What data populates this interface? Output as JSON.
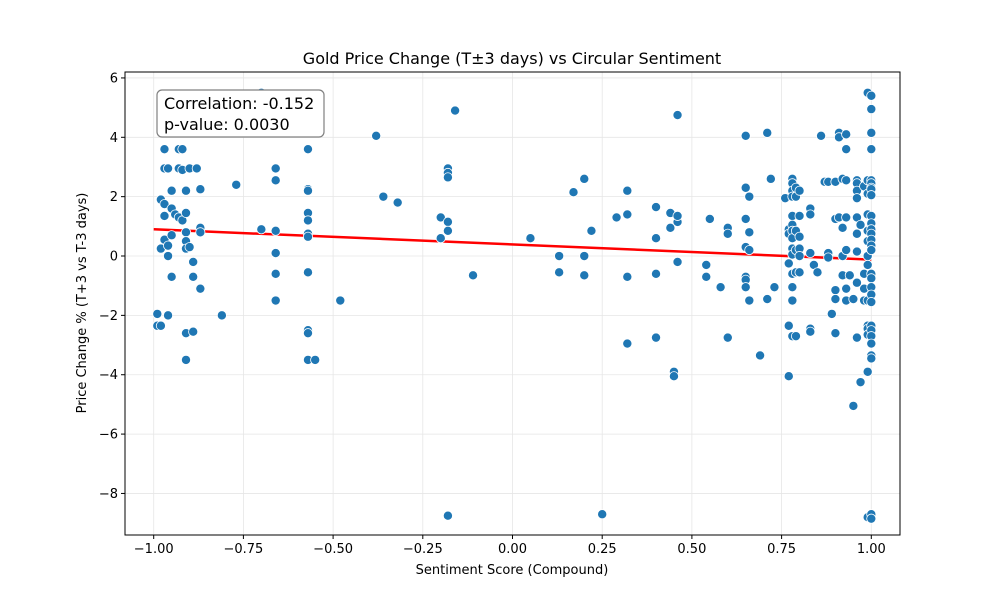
{
  "chart_data": {
    "type": "scatter",
    "title": "Gold Price Change (T±3 days) vs Circular Sentiment",
    "xlabel": "Sentiment Score (Compound)",
    "ylabel": "Price Change % (T+3 vs T-3 days)",
    "xlim": [
      -1.08,
      1.08
    ],
    "ylim": [
      -9.4,
      6.2
    ],
    "xticks": [
      -1.0,
      -0.75,
      -0.5,
      -0.25,
      0.0,
      0.25,
      0.5,
      0.75,
      1.0
    ],
    "xtick_labels": [
      "−1.00",
      "−0.75",
      "−0.50",
      "−0.25",
      "0.00",
      "0.25",
      "0.50",
      "0.75",
      "1.00"
    ],
    "yticks": [
      -8,
      -6,
      -4,
      -2,
      0,
      2,
      4,
      6
    ],
    "ytick_labels": [
      "−8",
      "−6",
      "−4",
      "−2",
      "0",
      "2",
      "4",
      "6"
    ],
    "grid": true,
    "annotation": {
      "line1": "Correlation: -0.152",
      "line2": "p-value: 0.0030"
    },
    "trend_line": {
      "x": [
        -1.0,
        1.0
      ],
      "y": [
        0.9,
        -0.12
      ],
      "color": "#ff0000"
    },
    "colors": {
      "point": "#1f77b4",
      "point_edge": "#ffffff",
      "grid": "#e6e6e6"
    },
    "points": [
      [
        -0.99,
        -2.35
      ],
      [
        -0.99,
        -1.95
      ],
      [
        -0.98,
        -2.35
      ],
      [
        -0.98,
        1.9
      ],
      [
        -0.98,
        0.25
      ],
      [
        -0.97,
        3.6
      ],
      [
        -0.97,
        2.95
      ],
      [
        -0.97,
        1.75
      ],
      [
        -0.97,
        1.35
      ],
      [
        -0.97,
        0.55
      ],
      [
        -0.96,
        2.95
      ],
      [
        -0.96,
        -2.0
      ],
      [
        -0.96,
        0.0
      ],
      [
        -0.96,
        0.35
      ],
      [
        -0.95,
        2.2
      ],
      [
        -0.95,
        1.6
      ],
      [
        -0.95,
        -0.7
      ],
      [
        -0.95,
        0.7
      ],
      [
        -0.94,
        1.4
      ],
      [
        -0.93,
        3.6
      ],
      [
        -0.93,
        2.95
      ],
      [
        -0.93,
        1.3
      ],
      [
        -0.92,
        3.6
      ],
      [
        -0.92,
        2.9
      ],
      [
        -0.92,
        1.2
      ],
      [
        -0.91,
        2.2
      ],
      [
        -0.91,
        1.45
      ],
      [
        -0.91,
        0.8
      ],
      [
        -0.91,
        0.5
      ],
      [
        -0.91,
        0.25
      ],
      [
        -0.91,
        -2.6
      ],
      [
        -0.91,
        -3.5
      ],
      [
        -0.9,
        2.95
      ],
      [
        -0.9,
        0.3
      ],
      [
        -0.89,
        -0.2
      ],
      [
        -0.89,
        -0.7
      ],
      [
        -0.89,
        -2.55
      ],
      [
        -0.88,
        2.95
      ],
      [
        -0.87,
        2.25
      ],
      [
        -0.87,
        0.95
      ],
      [
        -0.87,
        0.8
      ],
      [
        -0.87,
        -1.1
      ],
      [
        -0.81,
        -2.0
      ],
      [
        -0.77,
        2.4
      ],
      [
        -0.7,
        5.5
      ],
      [
        -0.7,
        0.9
      ],
      [
        -0.66,
        4.25
      ],
      [
        -0.66,
        2.95
      ],
      [
        -0.66,
        2.55
      ],
      [
        -0.66,
        0.85
      ],
      [
        -0.66,
        0.1
      ],
      [
        -0.66,
        -0.6
      ],
      [
        -0.66,
        -1.5
      ],
      [
        -0.57,
        3.6
      ],
      [
        -0.57,
        2.25
      ],
      [
        -0.57,
        2.2
      ],
      [
        -0.57,
        1.45
      ],
      [
        -0.57,
        1.2
      ],
      [
        -0.57,
        0.75
      ],
      [
        -0.57,
        0.65
      ],
      [
        -0.57,
        -0.55
      ],
      [
        -0.57,
        -2.5
      ],
      [
        -0.57,
        -2.6
      ],
      [
        -0.57,
        -3.5
      ],
      [
        -0.55,
        -3.5
      ],
      [
        -0.48,
        -1.5
      ],
      [
        -0.38,
        4.05
      ],
      [
        -0.36,
        2.0
      ],
      [
        -0.32,
        1.8
      ],
      [
        -0.2,
        1.3
      ],
      [
        -0.2,
        0.6
      ],
      [
        -0.18,
        2.95
      ],
      [
        -0.18,
        2.8
      ],
      [
        -0.18,
        2.65
      ],
      [
        -0.18,
        1.15
      ],
      [
        -0.18,
        0.85
      ],
      [
        -0.18,
        -8.75
      ],
      [
        -0.16,
        4.9
      ],
      [
        -0.11,
        -0.65
      ],
      [
        0.05,
        0.6
      ],
      [
        0.13,
        0.0
      ],
      [
        0.13,
        -0.55
      ],
      [
        0.17,
        2.15
      ],
      [
        0.2,
        2.6
      ],
      [
        0.2,
        0.0
      ],
      [
        0.2,
        -0.65
      ],
      [
        0.22,
        0.85
      ],
      [
        0.25,
        -8.7
      ],
      [
        0.29,
        1.3
      ],
      [
        0.32,
        2.2
      ],
      [
        0.32,
        1.4
      ],
      [
        0.32,
        -0.7
      ],
      [
        0.32,
        -2.95
      ],
      [
        0.4,
        1.65
      ],
      [
        0.4,
        0.6
      ],
      [
        0.4,
        -0.6
      ],
      [
        0.4,
        -2.75
      ],
      [
        0.44,
        1.45
      ],
      [
        0.44,
        0.95
      ],
      [
        0.45,
        -3.9
      ],
      [
        0.45,
        -4.05
      ],
      [
        0.46,
        4.75
      ],
      [
        0.46,
        1.15
      ],
      [
        0.46,
        1.35
      ],
      [
        0.46,
        -0.2
      ],
      [
        0.54,
        -0.3
      ],
      [
        0.54,
        -0.7
      ],
      [
        0.55,
        1.25
      ],
      [
        0.58,
        -1.05
      ],
      [
        0.6,
        0.95
      ],
      [
        0.6,
        0.75
      ],
      [
        0.6,
        -2.75
      ],
      [
        0.65,
        4.05
      ],
      [
        0.65,
        2.3
      ],
      [
        0.65,
        1.25
      ],
      [
        0.65,
        0.3
      ],
      [
        0.65,
        -0.7
      ],
      [
        0.65,
        -0.8
      ],
      [
        0.65,
        -1.05
      ],
      [
        0.66,
        2.0
      ],
      [
        0.66,
        0.8
      ],
      [
        0.66,
        0.2
      ],
      [
        0.66,
        -1.5
      ],
      [
        0.69,
        -3.35
      ],
      [
        0.71,
        4.15
      ],
      [
        0.72,
        2.6
      ],
      [
        0.71,
        -1.45
      ],
      [
        0.73,
        -1.05
      ],
      [
        0.76,
        1.95
      ],
      [
        0.77,
        0.9
      ],
      [
        0.77,
        0.75
      ],
      [
        0.77,
        -0.25
      ],
      [
        0.77,
        -2.35
      ],
      [
        0.77,
        -4.05
      ],
      [
        0.78,
        2.6
      ],
      [
        0.78,
        2.45
      ],
      [
        0.78,
        2.2
      ],
      [
        0.78,
        2.0
      ],
      [
        0.78,
        1.35
      ],
      [
        0.78,
        1.05
      ],
      [
        0.78,
        0.85
      ],
      [
        0.78,
        0.6
      ],
      [
        0.78,
        0.25
      ],
      [
        0.78,
        0.05
      ],
      [
        0.78,
        -0.6
      ],
      [
        0.78,
        -1.05
      ],
      [
        0.78,
        -1.5
      ],
      [
        0.78,
        -2.7
      ],
      [
        0.79,
        2.3
      ],
      [
        0.79,
        2.0
      ],
      [
        0.79,
        0.85
      ],
      [
        0.79,
        0.2
      ],
      [
        0.79,
        -0.55
      ],
      [
        0.79,
        -2.7
      ],
      [
        0.8,
        2.2
      ],
      [
        0.8,
        1.35
      ],
      [
        0.8,
        0.65
      ],
      [
        0.8,
        0.25
      ],
      [
        0.8,
        0.0
      ],
      [
        0.8,
        -0.55
      ],
      [
        0.83,
        1.6
      ],
      [
        0.83,
        1.4
      ],
      [
        0.83,
        0.1
      ],
      [
        0.83,
        -2.45
      ],
      [
        0.83,
        -2.55
      ],
      [
        0.84,
        -0.3
      ],
      [
        0.85,
        -0.55
      ],
      [
        0.86,
        4.05
      ],
      [
        0.87,
        2.5
      ],
      [
        0.88,
        2.5
      ],
      [
        0.88,
        0.1
      ],
      [
        0.88,
        -0.05
      ],
      [
        0.89,
        -1.95
      ],
      [
        0.9,
        2.5
      ],
      [
        0.9,
        1.25
      ],
      [
        0.9,
        -1.15
      ],
      [
        0.9,
        -1.45
      ],
      [
        0.9,
        -2.6
      ],
      [
        0.91,
        4.15
      ],
      [
        0.91,
        4.0
      ],
      [
        0.91,
        1.3
      ],
      [
        0.92,
        2.6
      ],
      [
        0.92,
        0.95
      ],
      [
        0.92,
        0.0
      ],
      [
        0.92,
        -0.65
      ],
      [
        0.93,
        4.1
      ],
      [
        0.93,
        3.6
      ],
      [
        0.93,
        2.55
      ],
      [
        0.93,
        1.3
      ],
      [
        0.93,
        0.2
      ],
      [
        0.93,
        -1.1
      ],
      [
        0.93,
        -1.5
      ],
      [
        0.94,
        -0.65
      ],
      [
        0.95,
        -1.45
      ],
      [
        0.95,
        -5.05
      ],
      [
        0.96,
        2.55
      ],
      [
        0.96,
        2.45
      ],
      [
        0.96,
        2.2
      ],
      [
        0.96,
        1.95
      ],
      [
        0.96,
        1.3
      ],
      [
        0.96,
        0.75
      ],
      [
        0.96,
        0.15
      ],
      [
        0.96,
        -0.9
      ],
      [
        0.96,
        -2.75
      ],
      [
        0.97,
        -4.25
      ],
      [
        0.97,
        1.05
      ],
      [
        0.98,
        2.35
      ],
      [
        0.98,
        -1.5
      ],
      [
        0.98,
        -1.1
      ],
      [
        0.98,
        -0.6
      ],
      [
        0.99,
        5.5
      ],
      [
        0.99,
        2.55
      ],
      [
        0.99,
        2.1
      ],
      [
        0.99,
        1.4
      ],
      [
        0.99,
        0.85
      ],
      [
        0.99,
        0.5
      ],
      [
        0.99,
        0.0
      ],
      [
        0.99,
        -0.3
      ],
      [
        0.99,
        -1.5
      ],
      [
        0.99,
        -2.35
      ],
      [
        0.99,
        -2.45
      ],
      [
        0.99,
        -2.65
      ],
      [
        0.99,
        -3.9
      ],
      [
        0.99,
        -8.8
      ],
      [
        1.0,
        5.4
      ],
      [
        1.0,
        4.95
      ],
      [
        1.0,
        4.15
      ],
      [
        1.0,
        3.6
      ],
      [
        1.0,
        2.55
      ],
      [
        1.0,
        2.45
      ],
      [
        1.0,
        2.3
      ],
      [
        1.0,
        2.25
      ],
      [
        1.0,
        2.05
      ],
      [
        1.0,
        1.35
      ],
      [
        1.0,
        1.1
      ],
      [
        1.0,
        0.9
      ],
      [
        1.0,
        0.75
      ],
      [
        1.0,
        0.55
      ],
      [
        1.0,
        0.35
      ],
      [
        1.0,
        0.2
      ],
      [
        1.0,
        -0.6
      ],
      [
        1.0,
        -0.75
      ],
      [
        1.0,
        -1.05
      ],
      [
        1.0,
        -1.3
      ],
      [
        1.0,
        -1.55
      ],
      [
        1.0,
        -2.35
      ],
      [
        1.0,
        -2.5
      ],
      [
        1.0,
        -2.7
      ],
      [
        1.0,
        -2.95
      ],
      [
        1.0,
        -3.35
      ],
      [
        1.0,
        -3.45
      ],
      [
        1.0,
        -8.7
      ],
      [
        1.0,
        -8.85
      ]
    ]
  }
}
